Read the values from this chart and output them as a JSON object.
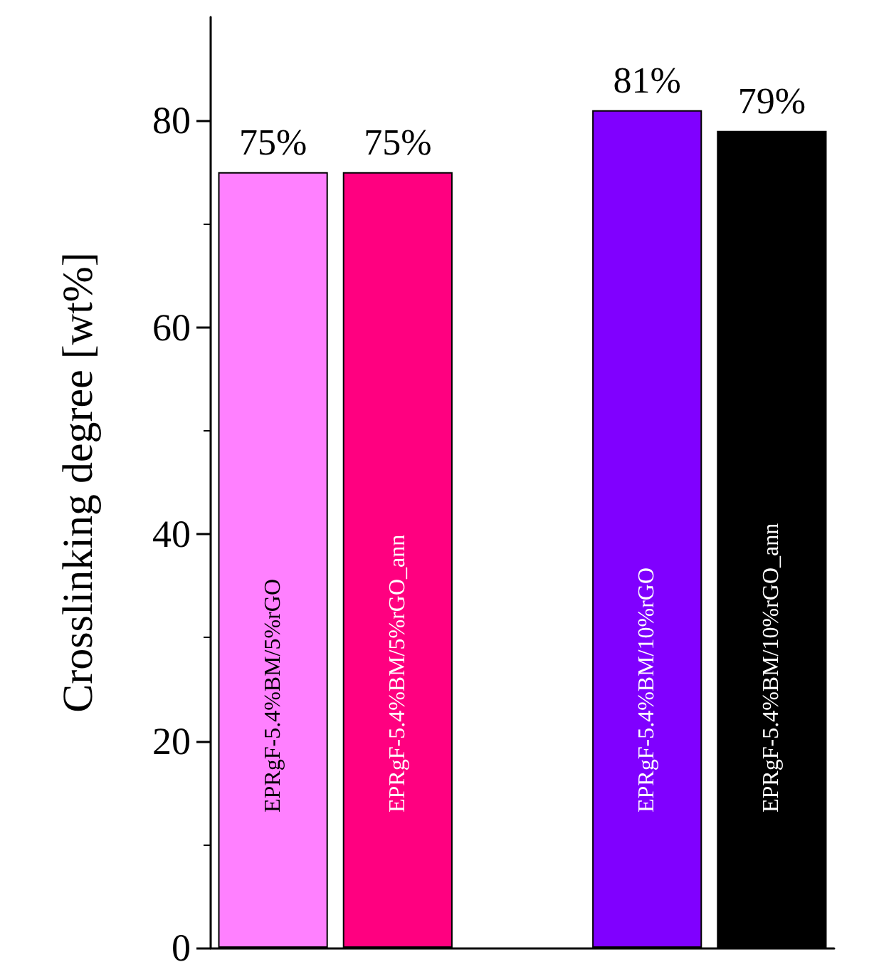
{
  "chart_data": {
    "type": "bar",
    "ylabel": "Crosslinking degree [wt%]",
    "categories": [
      "EPRgF-5.4%BM/5%rGO",
      "EPRgF-5.4%BM/5%rGO_ann",
      null,
      "EPRgF-5.4%BM/10%rGO",
      "EPRgF-5.4%BM/10%rGO_ann"
    ],
    "values": [
      75,
      75,
      null,
      81,
      79
    ],
    "colors": [
      "#ff80ff",
      "#ff0080",
      "#ffffff",
      "#8000ff",
      "#000000"
    ],
    "value_labels": [
      "75%",
      "75%",
      null,
      "81%",
      "79%"
    ],
    "ylim": [
      0,
      90
    ],
    "yticks": [
      0,
      20,
      40,
      60,
      80
    ],
    "grid": false
  }
}
